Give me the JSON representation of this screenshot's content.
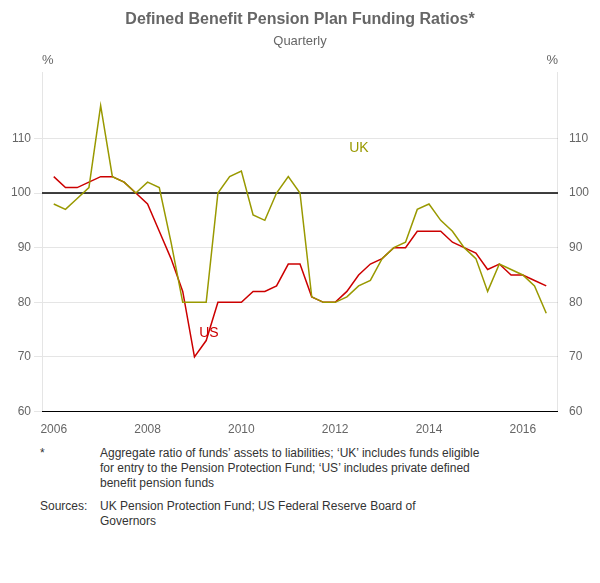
{
  "chart_data": {
    "type": "line",
    "title": "Defined Benefit Pension Plan Funding Ratios*",
    "subtitle": "Quarterly",
    "ylabel": "%",
    "y2label": "%",
    "x": [
      2006.0,
      2006.25,
      2006.5,
      2006.75,
      2007.0,
      2007.25,
      2007.5,
      2007.75,
      2008.0,
      2008.25,
      2008.5,
      2008.75,
      2009.0,
      2009.25,
      2009.5,
      2009.75,
      2010.0,
      2010.25,
      2010.5,
      2010.75,
      2011.0,
      2011.25,
      2011.5,
      2011.75,
      2012.0,
      2012.25,
      2012.5,
      2012.75,
      2013.0,
      2013.25,
      2013.5,
      2013.75,
      2014.0,
      2014.25,
      2014.5,
      2014.75,
      2015.0,
      2015.25,
      2015.5,
      2015.75,
      2016.0,
      2016.25,
      2016.5
    ],
    "series": [
      {
        "name": "UK",
        "color": "#999900",
        "values": [
          98,
          97,
          99,
          101,
          116,
          103,
          102,
          100,
          102,
          101,
          91,
          80,
          80,
          80,
          100,
          103,
          104,
          96,
          95,
          100,
          103,
          100,
          81,
          80,
          80,
          81,
          83,
          84,
          88,
          90,
          91,
          97,
          98,
          95,
          93,
          90,
          88,
          82,
          87,
          86,
          85,
          83,
          78
        ]
      },
      {
        "name": "US",
        "color": "#cc0000",
        "values": [
          103,
          101,
          101,
          102,
          103,
          103,
          102,
          100,
          98,
          93,
          88,
          82,
          70,
          73,
          80,
          80,
          80,
          82,
          82,
          83,
          87,
          87,
          81,
          80,
          80,
          82,
          85,
          87,
          88,
          90,
          90,
          93,
          93,
          93,
          91,
          90,
          89,
          86,
          87,
          85,
          85,
          84,
          83
        ]
      }
    ],
    "annotations": [
      {
        "text": "UK",
        "x": 2012.3,
        "y": 107,
        "color": "#999900"
      },
      {
        "text": "US",
        "x": 2009.1,
        "y": 73,
        "color": "#cc0000"
      }
    ],
    "hline": 100,
    "xlim": [
      2005.75,
      2016.75
    ],
    "xticks": [
      2006,
      2008,
      2010,
      2012,
      2014,
      2016
    ],
    "ylim": [
      60,
      122
    ],
    "yticks": [
      60,
      70,
      80,
      90,
      100,
      110
    ],
    "y2lim": [
      60,
      122
    ],
    "y2ticks": [
      60,
      70,
      80,
      90,
      100,
      110
    ],
    "grid": true,
    "footnote_mark": "*",
    "footnote": "Aggregate ratio of funds’ assets to liabilities; ‘UK’ includes funds eligible\nfor entry to the Pension Protection Fund; ‘US’ includes private defined\nbenefit pension funds",
    "sources_label": "Sources:",
    "sources": "UK Pension Protection Fund; US Federal Reserve Board of\nGovernors"
  }
}
